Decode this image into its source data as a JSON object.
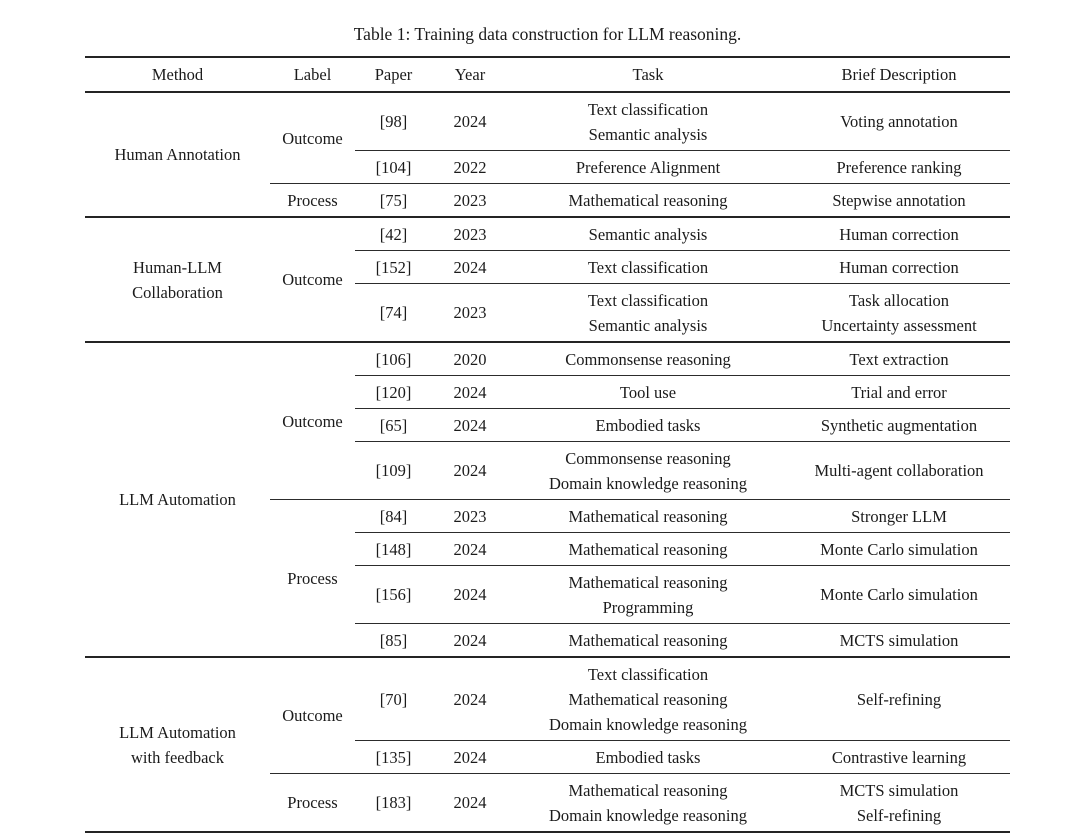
{
  "caption": "Table 1: Training data construction for LLM reasoning.",
  "table": {
    "columns": [
      "Method",
      "Label",
      "Paper",
      "Year",
      "Task",
      "Brief Description"
    ],
    "groups": [
      {
        "method_lines": [
          "Human Annotation"
        ],
        "sections": [
          {
            "label": "Outcome",
            "rows": [
              {
                "paper": "[98]",
                "year": "2024",
                "task": [
                  "Text classification",
                  "Semantic analysis"
                ],
                "brief": [
                  "Voting annotation"
                ]
              },
              {
                "paper": "[104]",
                "year": "2022",
                "task": [
                  "Preference Alignment"
                ],
                "brief": [
                  "Preference ranking"
                ]
              }
            ]
          },
          {
            "label": "Process",
            "rows": [
              {
                "paper": "[75]",
                "year": "2023",
                "task": [
                  "Mathematical reasoning"
                ],
                "brief": [
                  "Stepwise annotation"
                ]
              }
            ]
          }
        ]
      },
      {
        "method_lines": [
          "Human-LLM",
          "Collaboration"
        ],
        "sections": [
          {
            "label": "Outcome",
            "rows": [
              {
                "paper": "[42]",
                "year": "2023",
                "task": [
                  "Semantic analysis"
                ],
                "brief": [
                  "Human correction"
                ]
              },
              {
                "paper": "[152]",
                "year": "2024",
                "task": [
                  "Text classification"
                ],
                "brief": [
                  "Human correction"
                ]
              },
              {
                "paper": "[74]",
                "year": "2023",
                "task": [
                  "Text classification",
                  "Semantic analysis"
                ],
                "brief": [
                  "Task allocation",
                  "Uncertainty assessment"
                ]
              }
            ]
          }
        ]
      },
      {
        "method_lines": [
          "LLM Automation"
        ],
        "sections": [
          {
            "label": "Outcome",
            "rows": [
              {
                "paper": "[106]",
                "year": "2020",
                "task": [
                  "Commonsense reasoning"
                ],
                "brief": [
                  "Text extraction"
                ]
              },
              {
                "paper": "[120]",
                "year": "2024",
                "task": [
                  "Tool use"
                ],
                "brief": [
                  "Trial and error"
                ]
              },
              {
                "paper": "[65]",
                "year": "2024",
                "task": [
                  "Embodied tasks"
                ],
                "brief": [
                  "Synthetic augmentation"
                ]
              },
              {
                "paper": "[109]",
                "year": "2024",
                "task": [
                  "Commonsense reasoning",
                  "Domain knowledge reasoning"
                ],
                "brief": [
                  "Multi-agent collaboration"
                ]
              }
            ]
          },
          {
            "label": "Process",
            "rows": [
              {
                "paper": "[84]",
                "year": "2023",
                "task": [
                  "Mathematical reasoning"
                ],
                "brief": [
                  "Stronger LLM"
                ]
              },
              {
                "paper": "[148]",
                "year": "2024",
                "task": [
                  "Mathematical reasoning"
                ],
                "brief": [
                  "Monte Carlo simulation"
                ]
              },
              {
                "paper": "[156]",
                "year": "2024",
                "task": [
                  "Mathematical reasoning",
                  "Programming"
                ],
                "brief": [
                  "Monte Carlo simulation"
                ]
              },
              {
                "paper": "[85]",
                "year": "2024",
                "task": [
                  "Mathematical reasoning"
                ],
                "brief": [
                  "MCTS simulation"
                ]
              }
            ]
          }
        ]
      },
      {
        "method_lines": [
          "LLM Automation",
          "with feedback"
        ],
        "sections": [
          {
            "label": "Outcome",
            "rows": [
              {
                "paper": "[70]",
                "year": "2024",
                "task": [
                  "Text classification",
                  "Mathematical reasoning",
                  "Domain knowledge reasoning"
                ],
                "brief": [
                  "Self-refining"
                ]
              },
              {
                "paper": "[135]",
                "year": "2024",
                "task": [
                  "Embodied tasks"
                ],
                "brief": [
                  "Contrastive learning"
                ]
              }
            ]
          },
          {
            "label": "Process",
            "rows": [
              {
                "paper": "[183]",
                "year": "2024",
                "task": [
                  "Mathematical reasoning",
                  "Domain knowledge reasoning"
                ],
                "brief": [
                  "MCTS simulation",
                  "Self-refining"
                ]
              }
            ]
          }
        ]
      }
    ]
  }
}
